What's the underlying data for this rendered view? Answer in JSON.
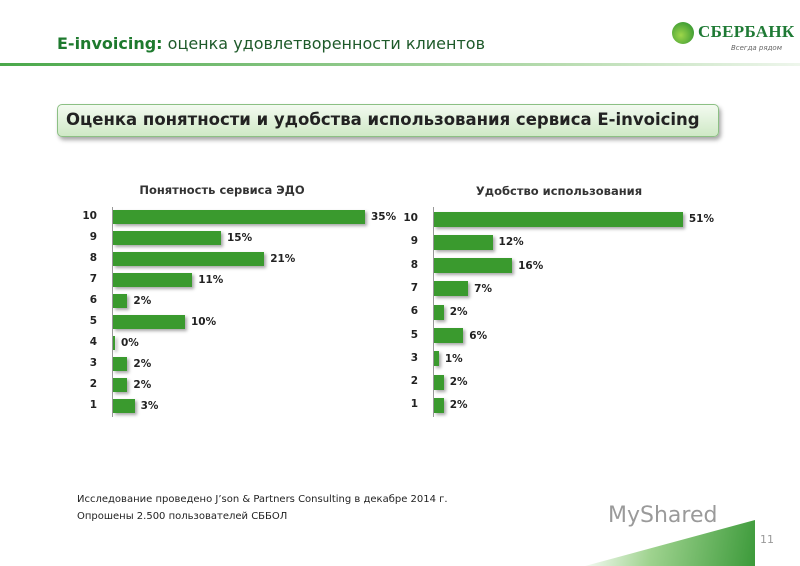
{
  "header": {
    "title_bold": "E-invoicing:",
    "title_rest": " оценка удовлетворенности клиентов"
  },
  "logo": {
    "name": "СБЕРБАНК",
    "tagline": "Всегда рядом"
  },
  "subtitle": "Оценка понятности и удобства использования сервиса E-invoicing",
  "chart_data": [
    {
      "type": "bar",
      "orientation": "horizontal",
      "title": "Понятность сервиса ЭДО",
      "categories": [
        "10",
        "9",
        "8",
        "7",
        "6",
        "5",
        "4",
        "3",
        "2",
        "1"
      ],
      "values": [
        35,
        15,
        21,
        11,
        2,
        10,
        0,
        2,
        2,
        3
      ],
      "labels": [
        "35%",
        "15%",
        "21%",
        "11%",
        "2%",
        "10%",
        "0%",
        "2%",
        "2%",
        "3%"
      ],
      "unit": "%",
      "color": "#3a9a2e"
    },
    {
      "type": "bar",
      "orientation": "horizontal",
      "title": "Удобство использования",
      "categories": [
        "10",
        "9",
        "8",
        "7",
        "6",
        "5",
        "3",
        "2",
        "1"
      ],
      "values": [
        51,
        12,
        16,
        7,
        2,
        6,
        1,
        2,
        2
      ],
      "labels": [
        "51%",
        "12%",
        "16%",
        "7%",
        "2%",
        "6%",
        "1%",
        "2%",
        "2%"
      ],
      "unit": "%",
      "color": "#3a9a2e"
    }
  ],
  "footer": {
    "line1": "Исследование проведено J’son & Partners Consulting в декабре  2014 г.",
    "line2": "Опрошены 2.500 пользователей СББОЛ"
  },
  "page_number": "11",
  "watermark": "MyShared"
}
